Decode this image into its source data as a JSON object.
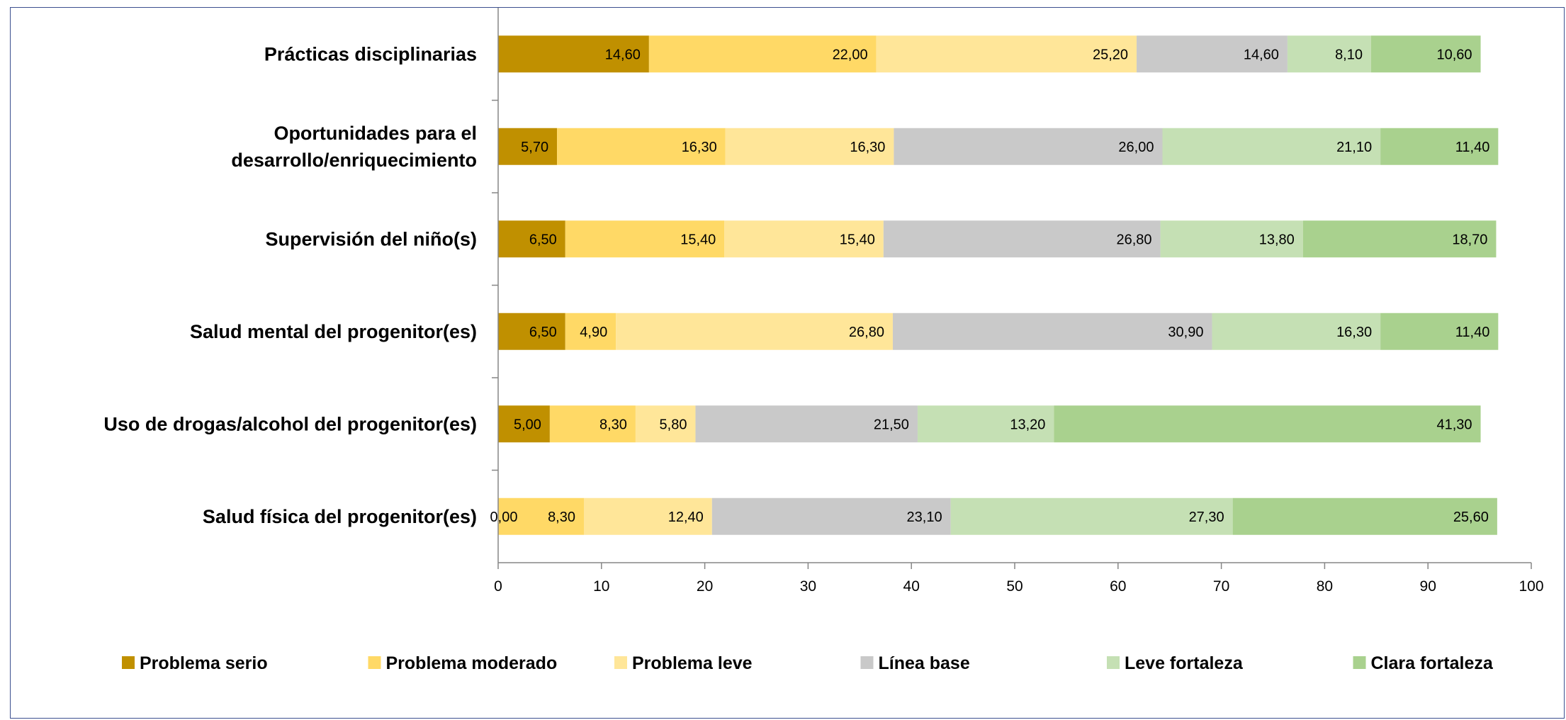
{
  "chart_data": {
    "type": "bar",
    "orientation": "horizontal",
    "stacked": true,
    "categories": [
      "Prácticas disciplinarias",
      [
        "Oportunidades para el",
        "desarrollo/enriquecimiento"
      ],
      "Supervisión del niño(s)",
      "Salud mental del progenitor(es)",
      "Uso de drogas/alcohol del progenitor(es)",
      "Salud física del progenitor(es)"
    ],
    "series": [
      {
        "name": "Problema serio",
        "color": "#C09000",
        "values": [
          14.6,
          5.7,
          6.5,
          6.5,
          5.0,
          0.0
        ],
        "labels": [
          "14,60",
          "5,70",
          "6,50",
          "6,50",
          "5,00",
          "0,00"
        ]
      },
      {
        "name": "Problema moderado",
        "color": "#FFD966",
        "values": [
          22.0,
          16.3,
          15.4,
          4.9,
          8.3,
          8.3
        ],
        "labels": [
          "22,00",
          "16,30",
          "15,40",
          "4,90",
          "8,30",
          "8,30"
        ]
      },
      {
        "name": "Problema leve",
        "color": "#FFE699",
        "values": [
          25.2,
          16.3,
          15.4,
          26.8,
          5.8,
          12.4
        ],
        "labels": [
          "25,20",
          "16,30",
          "15,40",
          "26,80",
          "5,80",
          "12,40"
        ]
      },
      {
        "name": "Línea base",
        "color": "#C9C9C9",
        "values": [
          14.6,
          26.0,
          26.8,
          30.9,
          21.5,
          23.1
        ],
        "labels": [
          "14,60",
          "26,00",
          "26,80",
          "30,90",
          "21,50",
          "23,10"
        ]
      },
      {
        "name": "Leve fortaleza",
        "color": "#C5E0B4",
        "values": [
          8.1,
          21.1,
          13.8,
          16.3,
          13.2,
          27.3
        ],
        "labels": [
          "8,10",
          "21,10",
          "13,80",
          "16,30",
          "13,20",
          "27,30"
        ]
      },
      {
        "name": "Clara fortaleza",
        "color": "#A9D18E",
        "values": [
          10.6,
          11.4,
          18.7,
          11.4,
          41.3,
          25.6
        ],
        "labels": [
          "10,60",
          "11,40",
          "18,70",
          "11,40",
          "41,30",
          "25,60"
        ]
      }
    ],
    "xlim": [
      0,
      100
    ],
    "xticks": [
      "0",
      "10",
      "20",
      "30",
      "40",
      "50",
      "60",
      "70",
      "80",
      "90",
      "100"
    ],
    "title": "",
    "xlabel": "",
    "ylabel": "",
    "grid": false,
    "legend": "bottom"
  }
}
